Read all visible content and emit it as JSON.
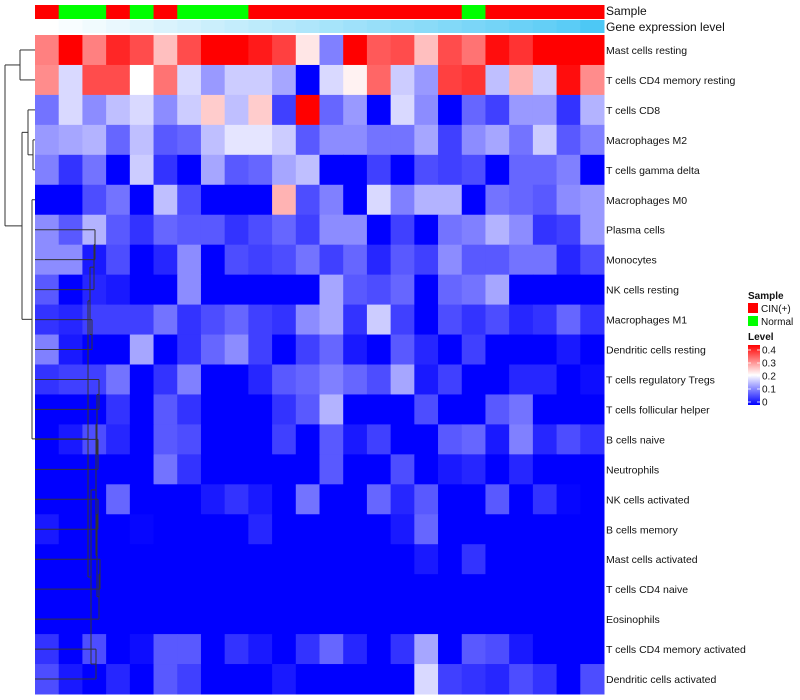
{
  "chart_data": {
    "type": "heatmap",
    "title": "",
    "annotations": {
      "sample_label": "Sample",
      "gene_expression_label": "Gene expression level",
      "sample": [
        "CIN(+)",
        "Normal",
        "Normal",
        "CIN(+)",
        "Normal",
        "CIN(+)",
        "Normal",
        "Normal",
        "Normal",
        "CIN(+)",
        "CIN(+)",
        "CIN(+)",
        "CIN(+)",
        "CIN(+)",
        "CIN(+)",
        "CIN(+)",
        "CIN(+)",
        "CIN(+)",
        "Normal",
        "CIN(+)",
        "CIN(+)",
        "CIN(+)",
        "CIN(+)",
        "CIN(+)"
      ],
      "gene_expression_level": [
        0,
        0.04,
        0.08,
        0.12,
        0.17,
        0.21,
        0.25,
        0.29,
        0.33,
        0.37,
        0.41,
        0.45,
        0.5,
        0.54,
        0.58,
        0.62,
        0.66,
        0.7,
        0.74,
        0.78,
        0.83,
        0.87,
        0.92,
        1
      ]
    },
    "rows": [
      "Mast cells resting",
      "T cells CD4 memory resting",
      "T cells CD8",
      "Macrophages M2",
      "T cells gamma delta",
      "Macrophages M0",
      "Plasma cells",
      "Monocytes",
      "NK cells resting",
      "Macrophages M1",
      "Dendritic cells resting",
      "T cells regulatory  Tregs",
      "T cells follicular helper",
      "B cells naive",
      "Neutrophils",
      "NK cells activated",
      "B cells memory",
      "Mast cells activated",
      "T cells CD4 naive",
      "Eosinophils",
      "T cells CD4 memory activated",
      "Dendritic cells activated"
    ],
    "values": [
      [
        0.3,
        0.4,
        0.3,
        0.37,
        0.34,
        0.25,
        0.34,
        0.4,
        0.4,
        0.38,
        0.35,
        0.22,
        0.1,
        0.4,
        0.33,
        0.34,
        0.25,
        0.34,
        0.31,
        0.39,
        0.36,
        0.4,
        0.4,
        0.4
      ],
      [
        0.29,
        0.17,
        0.34,
        0.34,
        0.2,
        0.31,
        0.17,
        0.12,
        0.16,
        0.16,
        0.13,
        0,
        0.17,
        0.21,
        0.32,
        0.16,
        0.12,
        0.35,
        0.36,
        0.15,
        0.26,
        0.16,
        0.39,
        0.29
      ],
      [
        0.09,
        0.17,
        0.11,
        0.15,
        0.17,
        0.11,
        0.16,
        0.24,
        0.15,
        0.24,
        0.05,
        0.4,
        0.08,
        0.12,
        0,
        0.17,
        0.11,
        0,
        0.08,
        0.05,
        0.12,
        0.12,
        0.04,
        0.14
      ],
      [
        0.12,
        0.13,
        0.14,
        0.08,
        0.15,
        0.07,
        0.08,
        0.15,
        0.18,
        0.18,
        0.16,
        0.07,
        0.11,
        0.11,
        0.09,
        0.09,
        0.13,
        0.05,
        0.11,
        0.13,
        0.09,
        0.16,
        0.07,
        0.1
      ],
      [
        0.1,
        0.04,
        0.09,
        0,
        0.16,
        0.04,
        0,
        0.13,
        0.07,
        0.08,
        0.13,
        0.15,
        0,
        0,
        0.05,
        0,
        0.06,
        0.05,
        0.06,
        0,
        0.08,
        0.08,
        0.1,
        0
      ],
      [
        0,
        0,
        0.06,
        0.09,
        0,
        0.15,
        0.06,
        0,
        0,
        0,
        0.26,
        0.06,
        0.1,
        0,
        0.17,
        0.1,
        0.14,
        0.14,
        0,
        0.09,
        0.08,
        0.07,
        0.11,
        0.12
      ],
      [
        0.11,
        0.07,
        0.14,
        0.07,
        0.04,
        0.08,
        0.07,
        0.07,
        0.04,
        0.06,
        0.08,
        0.05,
        0.11,
        0.11,
        0,
        0.05,
        0,
        0.09,
        0.1,
        0.14,
        0.11,
        0.04,
        0.05,
        0.12
      ],
      [
        0.11,
        0.11,
        0.02,
        0.06,
        0,
        0.03,
        0.11,
        0,
        0.06,
        0.05,
        0.06,
        0.09,
        0.05,
        0.08,
        0.03,
        0.07,
        0.05,
        0.11,
        0.07,
        0.07,
        0.09,
        0.09,
        0.03,
        0.06
      ],
      [
        0.07,
        0,
        0.03,
        0.02,
        0,
        0,
        0.11,
        0,
        0,
        0,
        0,
        0,
        0.13,
        0.07,
        0.06,
        0.08,
        0,
        0.08,
        0.09,
        0.13,
        0,
        0,
        0,
        0
      ],
      [
        0.04,
        0.03,
        0.05,
        0.05,
        0.05,
        0.09,
        0.04,
        0.06,
        0.08,
        0.05,
        0.04,
        0.11,
        0.13,
        0.04,
        0.16,
        0.05,
        0,
        0.06,
        0.04,
        0.06,
        0.03,
        0.04,
        0.08,
        0.04
      ],
      [
        0.1,
        0.02,
        0,
        0,
        0.13,
        0,
        0.04,
        0.08,
        0.11,
        0.05,
        0,
        0.05,
        0.08,
        0.02,
        0,
        0.07,
        0.03,
        0,
        0.05,
        0,
        0,
        0,
        0.02,
        0
      ],
      [
        0.04,
        0.05,
        0.05,
        0.09,
        0,
        0.04,
        0.1,
        0,
        0,
        0.03,
        0.07,
        0.08,
        0.1,
        0.08,
        0.06,
        0.13,
        0.02,
        0.05,
        0,
        0,
        0.03,
        0.03,
        0,
        0.01
      ],
      [
        0,
        0,
        0,
        0.04,
        0,
        0.07,
        0.04,
        0,
        0,
        0,
        0.04,
        0.07,
        0.14,
        0,
        0,
        0,
        0.06,
        0,
        0,
        0.07,
        0.09,
        0,
        0,
        0
      ],
      [
        0,
        0.02,
        0.06,
        0.03,
        0,
        0.07,
        0.06,
        0,
        0,
        0,
        0.05,
        0,
        0.07,
        0.02,
        0.05,
        0,
        0,
        0.07,
        0.08,
        0.02,
        0.1,
        0.03,
        0.06,
        0.04
      ],
      [
        0,
        0,
        0,
        0,
        0,
        0.09,
        0.04,
        0,
        0,
        0,
        0,
        0,
        0.07,
        0,
        0,
        0.06,
        0,
        0.02,
        0.03,
        0,
        0.03,
        0,
        0,
        0
      ],
      [
        0,
        0,
        0,
        0.08,
        0,
        0,
        0,
        0.02,
        0.04,
        0.02,
        0,
        0.09,
        0,
        0,
        0.08,
        0.03,
        0.07,
        0,
        0,
        0.07,
        0,
        0.04,
        0.005,
        0
      ],
      [
        0.02,
        0,
        0,
        0,
        0.005,
        0,
        0,
        0,
        0,
        0.03,
        0,
        0,
        0,
        0,
        0,
        0.02,
        0.08,
        0,
        0,
        0,
        0,
        0,
        0,
        0
      ],
      [
        0,
        0,
        0,
        0,
        0,
        0,
        0,
        0,
        0,
        0,
        0,
        0,
        0,
        0,
        0,
        0,
        0.02,
        0,
        0.04,
        0,
        0,
        0,
        0,
        0
      ],
      [
        0,
        0,
        0,
        0,
        0,
        0,
        0,
        0,
        0,
        0,
        0,
        0,
        0,
        0,
        0,
        0,
        0,
        0,
        0,
        0,
        0,
        0,
        0,
        0
      ],
      [
        0,
        0,
        0,
        0,
        0,
        0,
        0,
        0,
        0,
        0,
        0,
        0,
        0,
        0,
        0,
        0,
        0,
        0,
        0,
        0,
        0,
        0,
        0,
        0
      ],
      [
        0.04,
        0,
        0.06,
        0,
        0.01,
        0.07,
        0.07,
        0,
        0.04,
        0.02,
        0,
        0.04,
        0.08,
        0.03,
        0,
        0.04,
        0.13,
        0,
        0.07,
        0.06,
        0.02,
        0,
        0,
        0
      ],
      [
        0.06,
        0.02,
        0,
        0.03,
        0,
        0.07,
        0.05,
        0,
        0,
        0,
        0.02,
        0,
        0,
        0,
        0,
        0,
        0.17,
        0.05,
        0.04,
        0.03,
        0.06,
        0.04,
        0,
        0.06
      ]
    ],
    "color_scale": {
      "low": "#0000FF",
      "mid": "#FFFFFF",
      "high": "#FF0000",
      "range": [
        0,
        0.4
      ]
    },
    "legend": {
      "sample_title": "Sample",
      "sample_entries": [
        {
          "label": "CIN(+)",
          "color": "#FF0000"
        },
        {
          "label": "Normal",
          "color": "#00FF00"
        }
      ],
      "level_title": "Level",
      "level_ticks": [
        "0.4",
        "0.3",
        "0.2",
        "0.1",
        "0"
      ],
      "placement": "right"
    },
    "gene_expression_colors": {
      "low": "#FFFFFF",
      "high": "#4DC8F5"
    }
  }
}
